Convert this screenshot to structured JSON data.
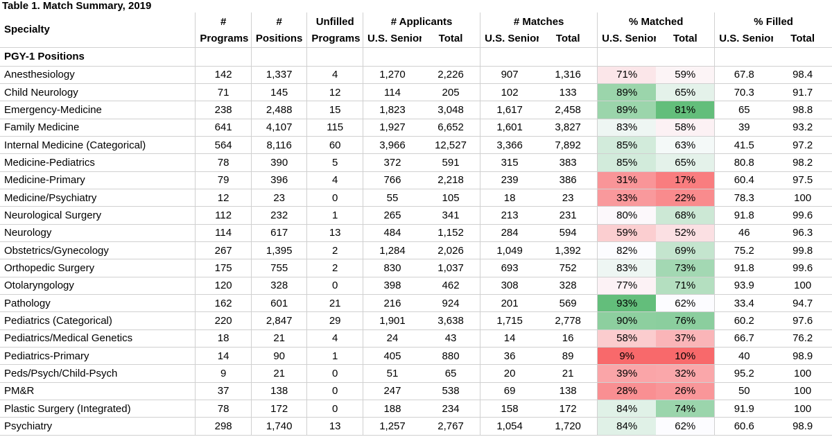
{
  "title": "Table 1. Match Summary, 2019",
  "headers": {
    "specialty": "Specialty",
    "programs": [
      "#",
      "Programs"
    ],
    "positions": [
      "#",
      "Positions"
    ],
    "unfilled": [
      "Unfilled",
      "Programs"
    ],
    "applicants": "# Applicants",
    "matches": "# Matches",
    "matched": "% Matched",
    "filled": "% Filled",
    "sub_senior": "U.S. Senior",
    "sub_total": "Total"
  },
  "section": "PGY-1 Positions",
  "colors": {
    "green_strong": "#63be7b",
    "red_strong": "#f8696b",
    "white": "#fcfcff"
  },
  "rows": [
    {
      "specialty": "Anesthesiology",
      "programs": "142",
      "positions": "1,337",
      "unfilled": "4",
      "app_senior": "1,270",
      "app_total": "2,226",
      "match_senior": "907",
      "match_total": "1,316",
      "pm_senior": "71%",
      "pm_total": "59%",
      "pf_senior": "67.8",
      "pf_total": "98.4"
    },
    {
      "specialty": "Child Neurology",
      "programs": "71",
      "positions": "145",
      "unfilled": "12",
      "app_senior": "114",
      "app_total": "205",
      "match_senior": "102",
      "match_total": "133",
      "pm_senior": "89%",
      "pm_total": "65%",
      "pf_senior": "70.3",
      "pf_total": "91.7"
    },
    {
      "specialty": "Emergency-Medicine",
      "programs": "238",
      "positions": "2,488",
      "unfilled": "15",
      "app_senior": "1,823",
      "app_total": "3,048",
      "match_senior": "1,617",
      "match_total": "2,458",
      "pm_senior": "89%",
      "pm_total": "81%",
      "pf_senior": "65",
      "pf_total": "98.8"
    },
    {
      "specialty": "Family Medicine",
      "programs": "641",
      "positions": "4,107",
      "unfilled": "115",
      "app_senior": "1,927",
      "app_total": "6,652",
      "match_senior": "1,601",
      "match_total": "3,827",
      "pm_senior": "83%",
      "pm_total": "58%",
      "pf_senior": "39",
      "pf_total": "93.2"
    },
    {
      "specialty": "Internal Medicine (Categorical)",
      "programs": "564",
      "positions": "8,116",
      "unfilled": "60",
      "app_senior": "3,966",
      "app_total": "12,527",
      "match_senior": "3,366",
      "match_total": "7,892",
      "pm_senior": "85%",
      "pm_total": "63%",
      "pf_senior": "41.5",
      "pf_total": "97.2"
    },
    {
      "specialty": "Medicine-Pediatrics",
      "programs": "78",
      "positions": "390",
      "unfilled": "5",
      "app_senior": "372",
      "app_total": "591",
      "match_senior": "315",
      "match_total": "383",
      "pm_senior": "85%",
      "pm_total": "65%",
      "pf_senior": "80.8",
      "pf_total": "98.2"
    },
    {
      "specialty": "Medicine-Primary",
      "programs": "79",
      "positions": "396",
      "unfilled": "4",
      "app_senior": "766",
      "app_total": "2,218",
      "match_senior": "239",
      "match_total": "386",
      "pm_senior": "31%",
      "pm_total": "17%",
      "pf_senior": "60.4",
      "pf_total": "97.5"
    },
    {
      "specialty": "Medicine/Psychiatry",
      "programs": "12",
      "positions": "23",
      "unfilled": "0",
      "app_senior": "55",
      "app_total": "105",
      "match_senior": "18",
      "match_total": "23",
      "pm_senior": "33%",
      "pm_total": "22%",
      "pf_senior": "78.3",
      "pf_total": "100"
    },
    {
      "specialty": "Neurological Surgery",
      "programs": "112",
      "positions": "232",
      "unfilled": "1",
      "app_senior": "265",
      "app_total": "341",
      "match_senior": "213",
      "match_total": "231",
      "pm_senior": "80%",
      "pm_total": "68%",
      "pf_senior": "91.8",
      "pf_total": "99.6"
    },
    {
      "specialty": "Neurology",
      "programs": "114",
      "positions": "617",
      "unfilled": "13",
      "app_senior": "484",
      "app_total": "1,152",
      "match_senior": "284",
      "match_total": "594",
      "pm_senior": "59%",
      "pm_total": "52%",
      "pf_senior": "46",
      "pf_total": "96.3"
    },
    {
      "specialty": "Obstetrics/Gynecology",
      "programs": "267",
      "positions": "1,395",
      "unfilled": "2",
      "app_senior": "1,284",
      "app_total": "2,026",
      "match_senior": "1,049",
      "match_total": "1,392",
      "pm_senior": "82%",
      "pm_total": "69%",
      "pf_senior": "75.2",
      "pf_total": "99.8"
    },
    {
      "specialty": "Orthopedic Surgery",
      "programs": "175",
      "positions": "755",
      "unfilled": "2",
      "app_senior": "830",
      "app_total": "1,037",
      "match_senior": "693",
      "match_total": "752",
      "pm_senior": "83%",
      "pm_total": "73%",
      "pf_senior": "91.8",
      "pf_total": "99.6"
    },
    {
      "specialty": "Otolaryngology",
      "programs": "120",
      "positions": "328",
      "unfilled": "0",
      "app_senior": "398",
      "app_total": "462",
      "match_senior": "308",
      "match_total": "328",
      "pm_senior": "77%",
      "pm_total": "71%",
      "pf_senior": "93.9",
      "pf_total": "100"
    },
    {
      "specialty": "Pathology",
      "programs": "162",
      "positions": "601",
      "unfilled": "21",
      "app_senior": "216",
      "app_total": "924",
      "match_senior": "201",
      "match_total": "569",
      "pm_senior": "93%",
      "pm_total": "62%",
      "pf_senior": "33.4",
      "pf_total": "94.7"
    },
    {
      "specialty": "Pediatrics (Categorical)",
      "programs": "220",
      "positions": "2,847",
      "unfilled": "29",
      "app_senior": "1,901",
      "app_total": "3,638",
      "match_senior": "1,715",
      "match_total": "2,778",
      "pm_senior": "90%",
      "pm_total": "76%",
      "pf_senior": "60.2",
      "pf_total": "97.6"
    },
    {
      "specialty": "Pediatrics/Medical Genetics",
      "programs": "18",
      "positions": "21",
      "unfilled": "4",
      "app_senior": "24",
      "app_total": "43",
      "match_senior": "14",
      "match_total": "16",
      "pm_senior": "58%",
      "pm_total": "37%",
      "pf_senior": "66.7",
      "pf_total": "76.2"
    },
    {
      "specialty": "Pediatrics-Primary",
      "programs": "14",
      "positions": "90",
      "unfilled": "1",
      "app_senior": "405",
      "app_total": "880",
      "match_senior": "36",
      "match_total": "89",
      "pm_senior": "9%",
      "pm_total": "10%",
      "pf_senior": "40",
      "pf_total": "98.9"
    },
    {
      "specialty": "Peds/Psych/Child-Psych",
      "programs": "9",
      "positions": "21",
      "unfilled": "0",
      "app_senior": "51",
      "app_total": "65",
      "match_senior": "20",
      "match_total": "21",
      "pm_senior": "39%",
      "pm_total": "32%",
      "pf_senior": "95.2",
      "pf_total": "100"
    },
    {
      "specialty": "PM&R",
      "programs": "37",
      "positions": "138",
      "unfilled": "0",
      "app_senior": "247",
      "app_total": "538",
      "match_senior": "69",
      "match_total": "138",
      "pm_senior": "28%",
      "pm_total": "26%",
      "pf_senior": "50",
      "pf_total": "100"
    },
    {
      "specialty": "Plastic Surgery (Integrated)",
      "programs": "78",
      "positions": "172",
      "unfilled": "0",
      "app_senior": "188",
      "app_total": "234",
      "match_senior": "158",
      "match_total": "172",
      "pm_senior": "84%",
      "pm_total": "74%",
      "pf_senior": "91.9",
      "pf_total": "100"
    },
    {
      "specialty": "Psychiatry",
      "programs": "298",
      "positions": "1,740",
      "unfilled": "13",
      "app_senior": "1,257",
      "app_total": "2,767",
      "match_senior": "1,054",
      "match_total": "1,720",
      "pm_senior": "84%",
      "pm_total": "62%",
      "pf_senior": "60.6",
      "pf_total": "98.9"
    }
  ]
}
